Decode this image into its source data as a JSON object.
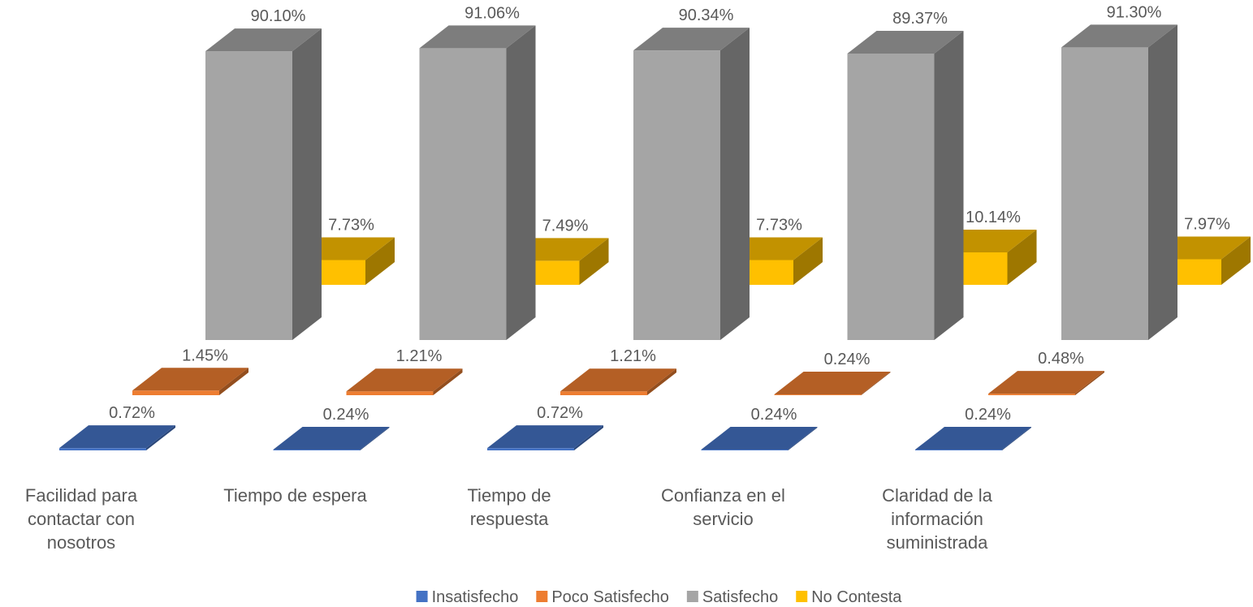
{
  "chart_data": {
    "type": "bar3d",
    "categories": [
      "Facilidad para contactar con nosotros",
      "Tiempo de espera",
      "Tiempo de respuesta",
      "Confianza en el servicio",
      "Claridad de la información suministrada"
    ],
    "series": [
      {
        "name": "Insatisfecho",
        "color": "#4472c4",
        "values": [
          0.72,
          0.24,
          0.72,
          0.24,
          0.24
        ],
        "value_labels": [
          "0.72%",
          "0.24%",
          "0.72%",
          "0.24%",
          "0.24%"
        ]
      },
      {
        "name": "Poco Satisfecho",
        "color": "#ed7d31",
        "values": [
          1.45,
          1.21,
          1.21,
          0.24,
          0.48
        ],
        "value_labels": [
          "1.45%",
          "1.21%",
          "1.21%",
          "0.24%",
          "0.48%"
        ]
      },
      {
        "name": "Satisfecho",
        "color": "#a5a5a5",
        "values": [
          90.1,
          91.06,
          90.34,
          89.37,
          91.3
        ],
        "value_labels": [
          "90.10%",
          "91.06%",
          "90.34%",
          "89.37%",
          "91.30%"
        ]
      },
      {
        "name": "No Contesta",
        "color": "#ffc000",
        "values": [
          7.73,
          7.49,
          7.73,
          10.14,
          7.97
        ],
        "value_labels": [
          "7.73%",
          "7.49%",
          "7.73%",
          "10.14%",
          "7.97%"
        ]
      }
    ],
    "legend": "bottom"
  }
}
